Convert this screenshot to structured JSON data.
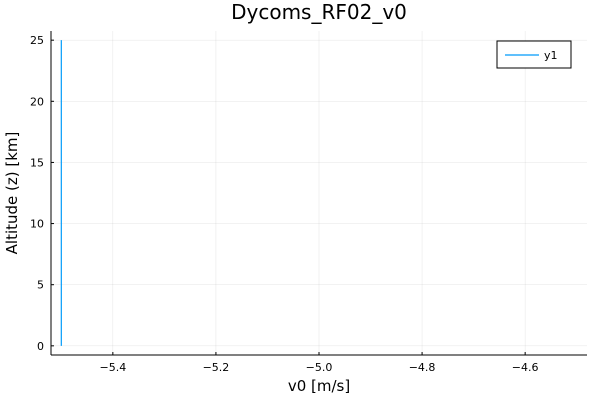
{
  "chart_data": {
    "type": "line",
    "title": "Dycoms_RF02_v0",
    "xlabel": "v0 [m/s]",
    "ylabel": "Altitude (z) [km]",
    "xlim": [
      -5.52,
      -4.48
    ],
    "ylim": [
      -0.75,
      25.75
    ],
    "xticks": [
      -5.4,
      -5.2,
      -5.0,
      -4.8,
      -4.6
    ],
    "xtick_labels": [
      "−5.4",
      "−5.2",
      "−5.0",
      "−4.8",
      "−4.6"
    ],
    "yticks": [
      0,
      5,
      10,
      15,
      20,
      25
    ],
    "ytick_labels": [
      "0",
      "5",
      "10",
      "15",
      "20",
      "25"
    ],
    "grid": true,
    "legend_position": "top-right",
    "series": [
      {
        "name": "y1",
        "color": "#009AFA",
        "x": [
          -5.5,
          -5.5
        ],
        "y": [
          0,
          25
        ]
      }
    ]
  }
}
